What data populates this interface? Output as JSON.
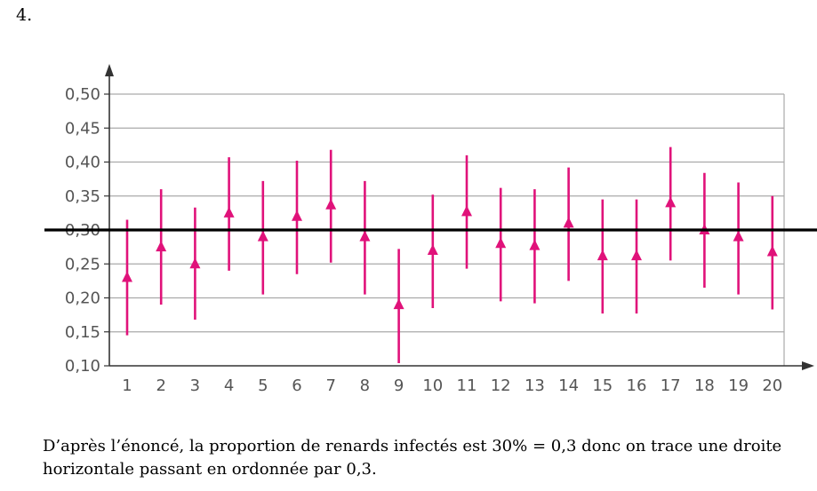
{
  "question": {
    "number": "4."
  },
  "chart_data": {
    "type": "scatter",
    "title": "",
    "xlabel": "",
    "ylabel": "",
    "ylim": [
      0.1,
      0.5
    ],
    "y_ticks": [
      "0,10",
      "0,15",
      "0,20",
      "0,25",
      "0,30",
      "0,35",
      "0,40",
      "0,45",
      "0,50"
    ],
    "y_tick_values": [
      0.1,
      0.15,
      0.2,
      0.25,
      0.3,
      0.35,
      0.4,
      0.45,
      0.5
    ],
    "categories": [
      "1",
      "2",
      "3",
      "4",
      "5",
      "6",
      "7",
      "8",
      "9",
      "10",
      "11",
      "12",
      "13",
      "14",
      "15",
      "16",
      "17",
      "18",
      "19",
      "20"
    ],
    "series": [
      {
        "values": [
          0.23,
          0.275,
          0.25,
          0.325,
          0.29,
          0.32,
          0.337,
          0.29,
          0.19,
          0.27,
          0.327,
          0.28,
          0.277,
          0.31,
          0.262,
          0.262,
          0.34,
          0.3,
          0.29,
          0.268
        ],
        "lower": [
          0.145,
          0.19,
          0.168,
          0.24,
          0.205,
          0.235,
          0.252,
          0.205,
          0.104,
          0.185,
          0.243,
          0.195,
          0.192,
          0.225,
          0.177,
          0.177,
          0.255,
          0.215,
          0.205,
          0.183
        ],
        "upper": [
          0.315,
          0.36,
          0.333,
          0.407,
          0.372,
          0.402,
          0.418,
          0.372,
          0.272,
          0.352,
          0.41,
          0.362,
          0.36,
          0.392,
          0.345,
          0.345,
          0.422,
          0.384,
          0.37,
          0.35
        ]
      }
    ],
    "reference_line": {
      "y": 0.3
    },
    "grid": true,
    "colors": {
      "marker": "#e0127a",
      "grid": "#aaaaaa",
      "reference": "#000000",
      "axis": "#333333"
    }
  },
  "caption": {
    "text": "D’après l’énoncé, la proportion de renards infectés est 30% = 0,3 donc on trace une droite horizontale passant en ordonnée par 0,3."
  }
}
